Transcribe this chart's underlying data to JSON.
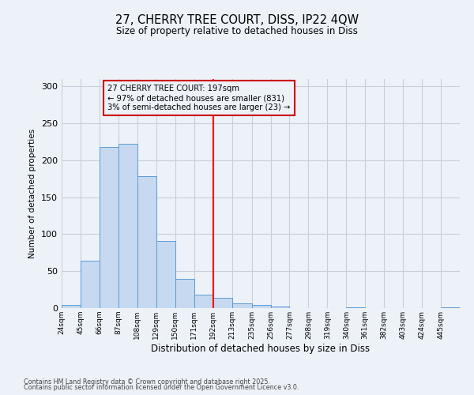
{
  "title_line1": "27, CHERRY TREE COURT, DISS, IP22 4QW",
  "title_line2": "Size of property relative to detached houses in Diss",
  "xlabel": "Distribution of detached houses by size in Diss",
  "ylabel": "Number of detached properties",
  "bin_labels": [
    "24sqm",
    "45sqm",
    "66sqm",
    "87sqm",
    "108sqm",
    "129sqm",
    "150sqm",
    "171sqm",
    "192sqm",
    "213sqm",
    "235sqm",
    "256sqm",
    "277sqm",
    "298sqm",
    "319sqm",
    "340sqm",
    "361sqm",
    "382sqm",
    "403sqm",
    "424sqm",
    "445sqm"
  ],
  "bar_values": [
    4,
    64,
    218,
    222,
    179,
    91,
    40,
    18,
    14,
    6,
    4,
    2,
    0,
    0,
    0,
    1,
    0,
    0,
    0,
    0,
    1
  ],
  "bin_edges": [
    24,
    45,
    66,
    87,
    108,
    129,
    150,
    171,
    192,
    213,
    235,
    256,
    277,
    298,
    319,
    340,
    361,
    382,
    403,
    424,
    445,
    466
  ],
  "bar_color": "#c6d9f0",
  "bar_edgecolor": "#5b9bd5",
  "vline_x": 192,
  "vline_color": "#ff0000",
  "annotation_line1": "27 CHERRY TREE COURT: 197sqm",
  "annotation_line2": "← 97% of detached houses are smaller (831)",
  "annotation_line3": "3% of semi-detached houses are larger (23) →",
  "annotation_box_edgecolor": "#cc0000",
  "ylim": [
    0,
    310
  ],
  "yticks": [
    0,
    50,
    100,
    150,
    200,
    250,
    300
  ],
  "grid_color": "#c8cfd8",
  "bg_color": "#edf2f9",
  "footnote1": "Contains HM Land Registry data © Crown copyright and database right 2025.",
  "footnote2": "Contains public sector information licensed under the Open Government Licence v3.0."
}
